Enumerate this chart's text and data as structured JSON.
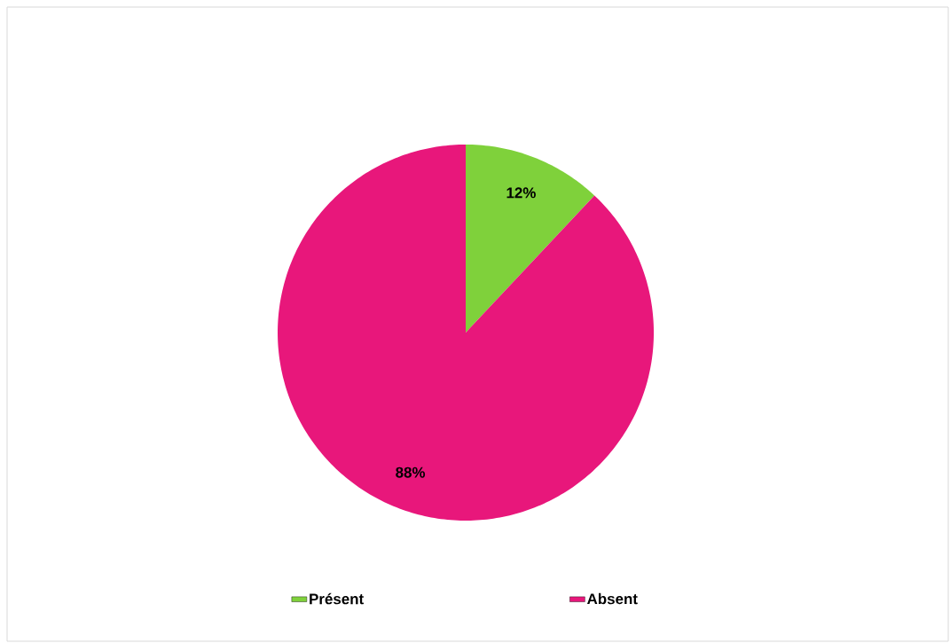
{
  "chart_data": {
    "type": "pie",
    "categories": [
      "Présent",
      "Absent"
    ],
    "values": [
      12,
      88
    ],
    "colors": [
      "#7fd13b",
      "#e8177b"
    ],
    "value_labels": [
      "12%",
      "88%"
    ],
    "legend": "bottom"
  }
}
